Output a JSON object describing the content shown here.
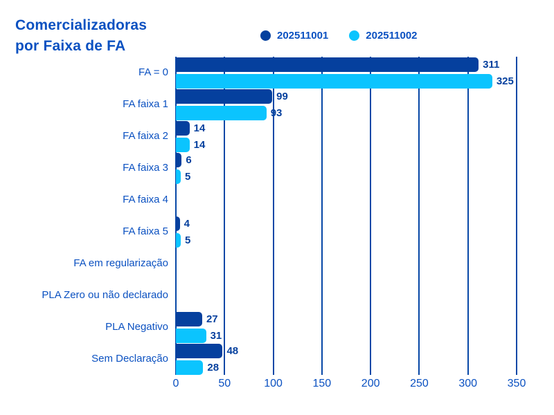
{
  "title": {
    "line1": "Comercializadoras",
    "line2": "por Faixa de FA"
  },
  "colors": {
    "background": "#FFFFFF",
    "label_blue": "#0B51C1",
    "value_navy": "#05409E",
    "grid_blue": "#0747A6",
    "series1": "#05409E",
    "series2": "#0BC4FE"
  },
  "chart_data": {
    "type": "bar",
    "orientation": "horizontal",
    "title": "Comercializadoras por Faixa de FA",
    "categories": [
      "FA = 0",
      "FA faixa 1",
      "FA faixa 2",
      "FA faixa 3",
      "FA faixa 4",
      "FA faixa 5",
      "FA em regularização",
      "PLA Zero ou não declarado",
      "PLA Negativo",
      "Sem Declaração"
    ],
    "series": [
      {
        "name": "202511001",
        "color": "#05409E",
        "values": [
          311,
          99,
          14,
          6,
          0,
          4,
          0,
          0,
          27,
          48
        ]
      },
      {
        "name": "202511002",
        "color": "#0BC4FE",
        "values": [
          325,
          93,
          14,
          5,
          0,
          5,
          0,
          0,
          31,
          28
        ]
      }
    ],
    "xlabel": "",
    "ylabel": "",
    "xlim": [
      0,
      350
    ],
    "xticks": [
      0,
      50,
      100,
      150,
      200,
      250,
      300,
      350
    ],
    "grid": true,
    "legend_position": "top",
    "value_labels": true,
    "zero_values_hidden": true
  }
}
